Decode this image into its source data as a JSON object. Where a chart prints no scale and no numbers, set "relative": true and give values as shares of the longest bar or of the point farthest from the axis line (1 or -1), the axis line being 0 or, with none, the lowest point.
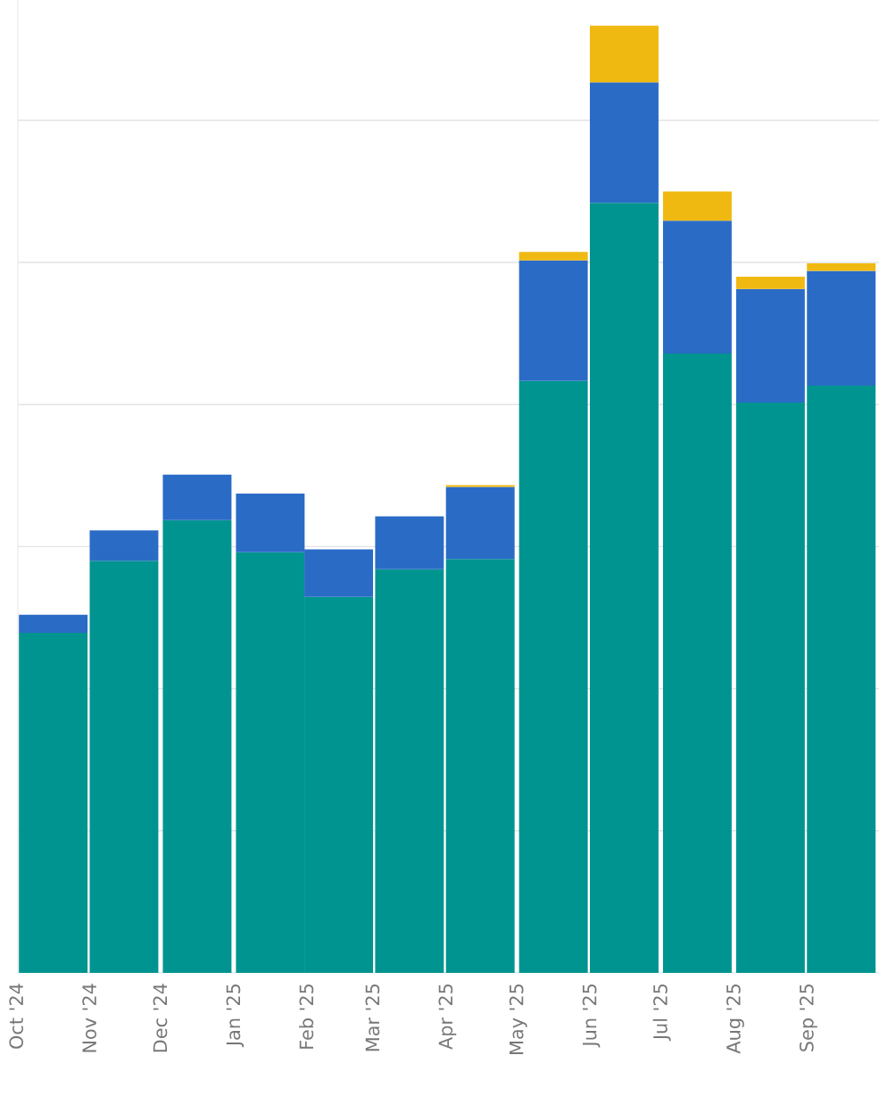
{
  "chart_data": {
    "type": "bar",
    "stacked": true,
    "relative": true,
    "grid": "y",
    "x": [
      "2024-10-16",
      "2024-11-15",
      "2024-12-16",
      "2025-01-16",
      "2025-02-14",
      "2025-03-16",
      "2025-04-15",
      "2025-05-16",
      "2025-06-15",
      "2025-07-16",
      "2025-08-16",
      "2025-09-15"
    ],
    "xlim": [
      "2024-10-01",
      "2025-10-01"
    ],
    "xticks": [
      {
        "value": "2024-10",
        "label": "Oct '24"
      },
      {
        "value": "2024-11",
        "label": "Nov '24"
      },
      {
        "value": "2024-12",
        "label": "Dec '24"
      },
      {
        "value": "2025-01",
        "label": "Jan '25"
      },
      {
        "value": "2025-02",
        "label": "Feb '25"
      },
      {
        "value": "2025-03",
        "label": "Mar '25"
      },
      {
        "value": "2025-04",
        "label": "Apr '25"
      },
      {
        "value": "2025-05",
        "label": "May '25"
      },
      {
        "value": "2025-06",
        "label": "Jun '25"
      },
      {
        "value": "2025-07",
        "label": "Jul '25"
      },
      {
        "value": "2025-08",
        "label": "Aug '25"
      },
      {
        "value": "2025-09",
        "label": "Sep '25"
      }
    ],
    "series": [
      {
        "color": "#009490",
        "values": [
          0.359,
          0.435,
          0.478,
          0.444,
          0.397,
          0.426,
          0.437,
          0.625,
          0.813,
          0.654,
          0.602,
          0.62
        ]
      },
      {
        "color": "#2a6bc6",
        "values": [
          0.019,
          0.032,
          0.048,
          0.062,
          0.05,
          0.056,
          0.076,
          0.127,
          0.127,
          0.14,
          0.12,
          0.121
        ]
      },
      {
        "color": "#f0b912",
        "values": [
          0,
          0,
          0,
          0,
          0,
          0,
          0.002,
          0.009,
          0.06,
          0.031,
          0.013,
          0.008
        ]
      }
    ]
  }
}
